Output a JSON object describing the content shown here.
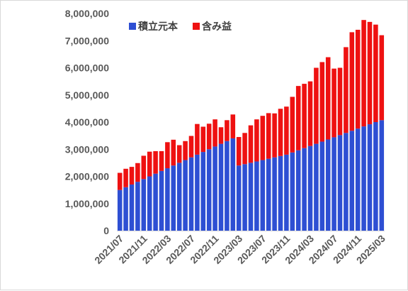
{
  "chart_data": {
    "type": "bar",
    "stacked": true,
    "title": "",
    "xlabel": "",
    "ylabel": "",
    "ylim": [
      0,
      8000000
    ],
    "yticks": [
      "0",
      "1,000,000",
      "2,000,000",
      "3,000,000",
      "4,000,000",
      "5,000,000",
      "6,000,000",
      "7,000,000",
      "8,000,000"
    ],
    "grid": false,
    "legend_position": "top-left",
    "categories": [
      "2021/07",
      "2021/08",
      "2021/09",
      "2021/10",
      "2021/11",
      "2021/12",
      "2022/01",
      "2022/02",
      "2022/03",
      "2022/04",
      "2022/05",
      "2022/06",
      "2022/07",
      "2022/08",
      "2022/09",
      "2022/10",
      "2022/11",
      "2022/12",
      "2023/01",
      "2023/02",
      "2023/03",
      "2023/04",
      "2023/05",
      "2023/06",
      "2023/07",
      "2023/08",
      "2023/09",
      "2023/10",
      "2023/11",
      "2023/12",
      "2024/01",
      "2024/02",
      "2024/03",
      "2024/04",
      "2024/05",
      "2024/06",
      "2024/07",
      "2024/08",
      "2024/09",
      "2024/10",
      "2024/11",
      "2024/12",
      "2025/01",
      "2025/02",
      "2025/03"
    ],
    "x_tick_labels": [
      "2021/07",
      "2021/11",
      "2022/03",
      "2022/07",
      "2022/11",
      "2023/03",
      "2023/07",
      "2023/11",
      "2024/03",
      "2024/07",
      "2024/11",
      "2025/03"
    ],
    "series": [
      {
        "name": "積立元本",
        "color": "#2e4fd3",
        "values": [
          1500000,
          1600000,
          1700000,
          1800000,
          1900000,
          2000000,
          2100000,
          2200000,
          2300000,
          2400000,
          2500000,
          2600000,
          2700000,
          2800000,
          2900000,
          3000000,
          3100000,
          3200000,
          3300000,
          3400000,
          2400000,
          2450000,
          2500000,
          2550000,
          2600000,
          2650000,
          2700000,
          2750000,
          2800000,
          2880000,
          2960000,
          3040000,
          3120000,
          3200000,
          3280000,
          3360000,
          3440000,
          3520000,
          3600000,
          3680000,
          3760000,
          3840000,
          3920000,
          4000000,
          4070000
        ]
      },
      {
        "name": "含み益",
        "color": "#ee1111",
        "values": [
          630000,
          680000,
          650000,
          690000,
          860000,
          910000,
          830000,
          730000,
          960000,
          950000,
          650000,
          700000,
          790000,
          1130000,
          930000,
          940000,
          1000000,
          610000,
          770000,
          880000,
          1050000,
          1150000,
          1380000,
          1550000,
          1630000,
          1680000,
          1620000,
          1740000,
          1770000,
          2050000,
          2370000,
          2370000,
          2380000,
          2800000,
          2930000,
          3030000,
          2530000,
          2480000,
          3160000,
          3630000,
          3640000,
          3920000,
          3770000,
          3590000,
          3130000
        ]
      }
    ]
  }
}
